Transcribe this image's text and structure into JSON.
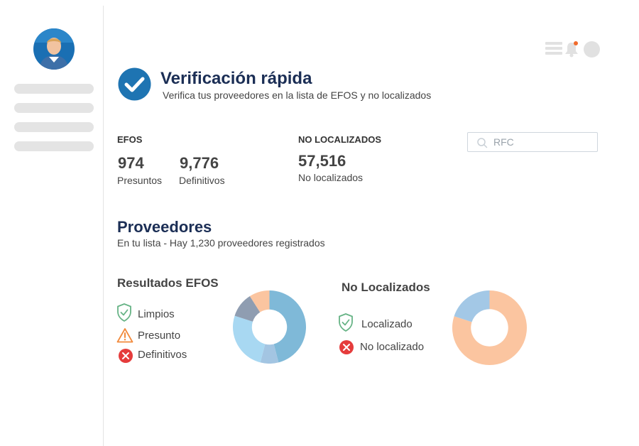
{
  "header": {
    "title": "Verificación rápida",
    "subtitle": "Verifica tus proveedores en la lista de EFOS y no localizados"
  },
  "stats": {
    "efos": {
      "label": "EFOS",
      "presuntos_value": "974",
      "presuntos_label": "Presuntos",
      "definitivos_value": "9,776",
      "definitivos_label": "Definitivos"
    },
    "no_localizados": {
      "label": "NO LOCALIZADOS",
      "value": "57,516",
      "value_label": "No localizados"
    }
  },
  "search": {
    "placeholder": "RFC",
    "value": ""
  },
  "proveedores": {
    "title": "Proveedores",
    "subtitle": "En tu lista - Hay 1,230 proveedores registrados"
  },
  "icons": {
    "topbar": [
      "menu-icon",
      "bell-icon",
      "user-avatar-icon"
    ],
    "legend": [
      "shield-check-icon",
      "warning-triangle-icon",
      "error-circle-icon"
    ]
  },
  "colors": {
    "brand_blue": "#1e74b2",
    "notification": "#f06b2c",
    "limpio": "#7fb9d8",
    "presunto": "#a8d8f2",
    "definitivo": "#8f9db1",
    "orange": "#fbc5a0",
    "light_blue": "#a3c8e6",
    "green": "#66b385",
    "warning": "#f28a3c",
    "red": "#e53c3c"
  },
  "chart_data": [
    {
      "type": "pie",
      "title": "Resultados EFOS",
      "legend": [
        "Limpios",
        "Presunto",
        "Definitivos"
      ],
      "slices": [
        {
          "label": "",
          "value": 46,
          "color": "#7fb9d8"
        },
        {
          "label": "",
          "value": 8,
          "color": "#a3c5e2"
        },
        {
          "label": "",
          "value": 26,
          "color": "#a8d8f2"
        },
        {
          "label": "",
          "value": 11,
          "color": "#8f9db1"
        },
        {
          "label": "",
          "value": 9,
          "color": "#fbc5a0"
        }
      ]
    },
    {
      "type": "pie",
      "title": "No Localizados",
      "legend": [
        "Localizado",
        "No localizado"
      ],
      "slices": [
        {
          "label": "",
          "value": 80,
          "color": "#fbc5a0"
        },
        {
          "label": "",
          "value": 20,
          "color": "#a3c8e6"
        }
      ]
    }
  ]
}
